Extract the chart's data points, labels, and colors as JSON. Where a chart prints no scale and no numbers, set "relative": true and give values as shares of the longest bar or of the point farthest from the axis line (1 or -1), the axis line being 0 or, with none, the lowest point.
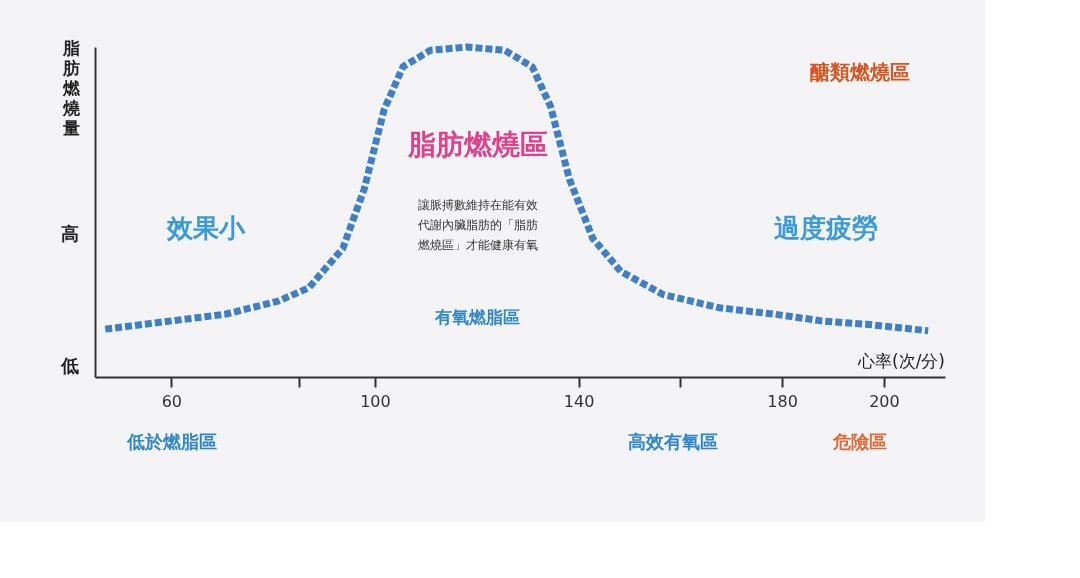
{
  "chart_data": {
    "type": "line",
    "relative": true,
    "xlabel": "心率(次/分)",
    "ylabel": "脂肪燃燒量",
    "xlim": [
      45,
      212
    ],
    "xticks": [
      60,
      {
        "value": 85,
        "label": null
      },
      100,
      140,
      {
        "value": 160,
        "label": null
      },
      180,
      200
    ],
    "grid": false,
    "line_style": "dashed",
    "marker": "none",
    "series": [
      {
        "color": "#3f7fc8",
        "x": [
          47,
          60,
          70.5,
          81,
          87,
          93.7,
          97.9,
          101.8,
          105.5,
          110.9,
          118,
          125.5,
          130.9,
          134.5,
          138.2,
          142.8,
          148.3,
          156.6,
          167.6,
          178.6,
          187.8,
          196.5,
          208.7
        ],
        "values": [
          0.145,
          0.17,
          0.19,
          0.23,
          0.27,
          0.39,
          0.57,
          0.81,
          0.94,
          0.99,
          1,
          0.99,
          0.94,
          0.82,
          0.6,
          0.42,
          0.32,
          0.25,
          0.21,
          0.19,
          0.17,
          0.16,
          0.14
        ]
      }
    ],
    "annotations": [
      "脂肪燃燒區",
      "讓脈搏數維持在能有效代謝內臟脂肪的「脂肪燃燒區」才能健康有氧",
      "效果小",
      "過度疲勞",
      "醣類燃燒區",
      "有氧燃脂區",
      "高",
      "低",
      "低於燃脂區",
      "高效有氧區",
      "危險區"
    ]
  }
}
